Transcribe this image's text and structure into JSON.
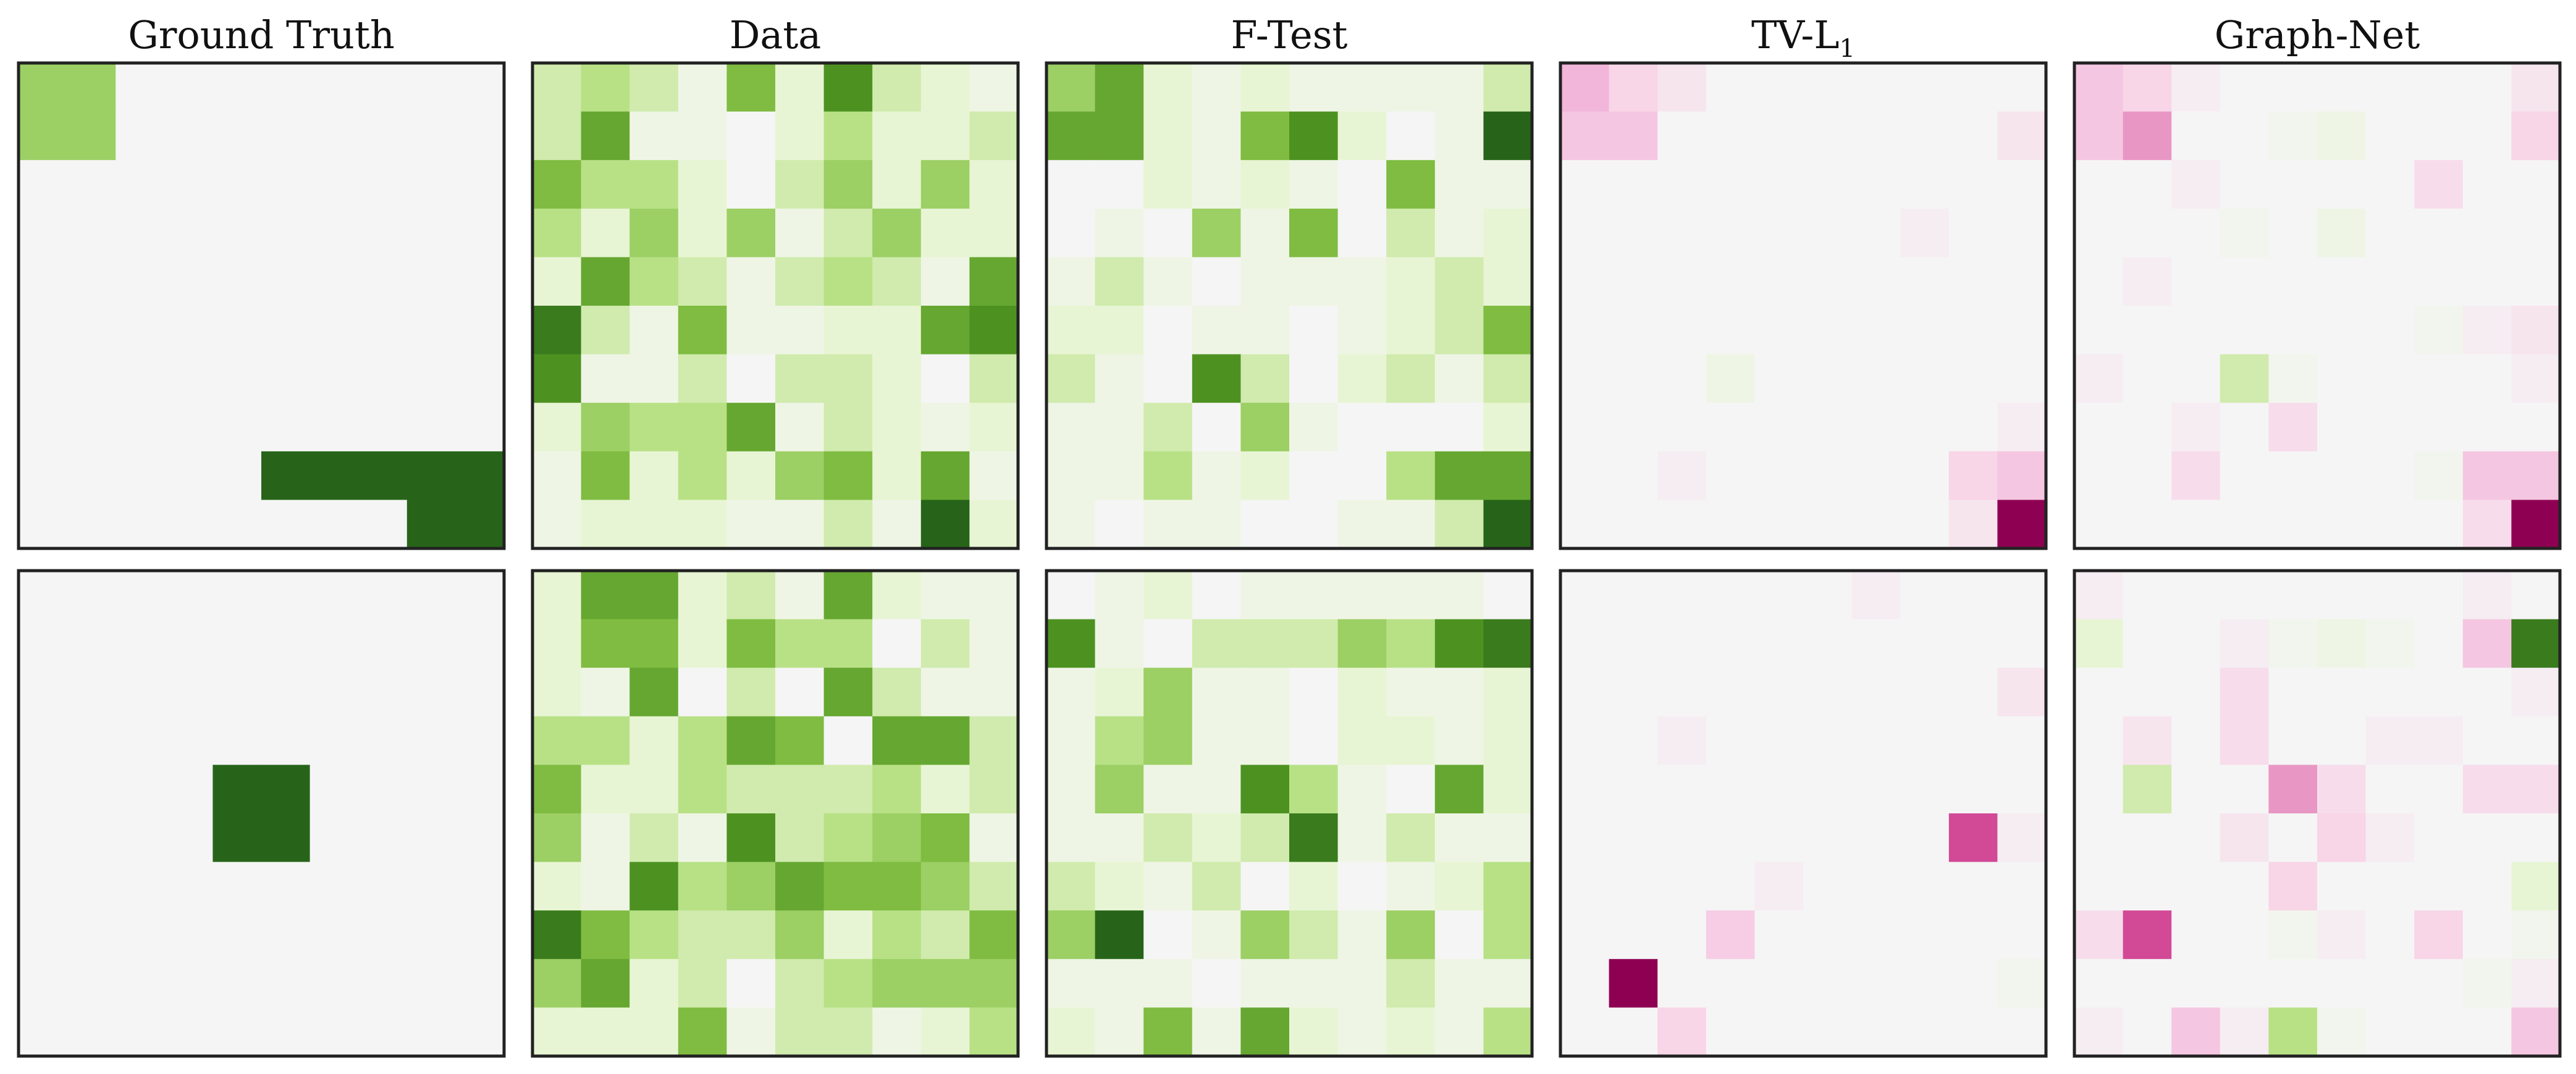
{
  "chart_data": {
    "type": "heatmap",
    "colormap": "PiYG",
    "grid": false,
    "panel_titles": [
      "Ground Truth",
      "Data",
      "F-Test",
      "TV-L",
      "Graph-Net"
    ],
    "title_subscripts": [
      "",
      "",
      "",
      "1",
      ""
    ],
    "rows": [
      [
        [
          [
            5,
            5,
            0,
            0,
            0,
            0,
            0,
            0,
            0,
            0
          ],
          [
            5,
            5,
            0,
            0,
            0,
            0,
            0,
            0,
            0,
            0
          ],
          [
            0,
            0,
            0,
            0,
            0,
            0,
            0,
            0,
            0,
            0
          ],
          [
            0,
            0,
            0,
            0,
            0,
            0,
            0,
            0,
            0,
            0
          ],
          [
            0,
            0,
            0,
            0,
            0,
            0,
            0,
            0,
            0,
            0
          ],
          [
            0,
            0,
            0,
            0,
            0,
            0,
            0,
            0,
            0,
            0
          ],
          [
            0,
            0,
            0,
            0,
            0,
            0,
            0,
            0,
            0,
            0
          ],
          [
            0,
            0,
            0,
            0,
            0,
            0,
            0,
            0,
            0,
            0
          ],
          [
            0,
            0,
            0,
            0,
            0,
            10,
            10,
            10,
            10,
            10
          ],
          [
            0,
            0,
            0,
            0,
            0,
            0,
            0,
            0,
            10,
            10
          ]
        ],
        [
          [
            3,
            4,
            3,
            1,
            6,
            2,
            8,
            3,
            2,
            1
          ],
          [
            3,
            7,
            1,
            1,
            0,
            2,
            4,
            2,
            2,
            3
          ],
          [
            6,
            4,
            4,
            2,
            0,
            3,
            5,
            2,
            5,
            2
          ],
          [
            4,
            2,
            5,
            2,
            5,
            1,
            3,
            5,
            2,
            2
          ],
          [
            2,
            7,
            4,
            3,
            1,
            3,
            4,
            3,
            1,
            7
          ],
          [
            9,
            3,
            1,
            6,
            1,
            1,
            2,
            2,
            7,
            8
          ],
          [
            8,
            1,
            1,
            3,
            0,
            3,
            3,
            2,
            0,
            3
          ],
          [
            2,
            5,
            4,
            4,
            7,
            1,
            3,
            2,
            1,
            2
          ],
          [
            1,
            6,
            2,
            4,
            2,
            5,
            6,
            2,
            7,
            1
          ],
          [
            1,
            2,
            2,
            2,
            1,
            1,
            3,
            1,
            10,
            2
          ]
        ],
        [
          [
            5,
            7,
            2,
            1,
            2,
            1,
            1,
            1,
            1,
            3
          ],
          [
            7,
            7,
            2,
            1,
            6,
            8,
            2,
            0,
            1,
            10
          ],
          [
            0,
            0,
            2,
            1,
            2,
            1,
            0,
            6,
            1,
            1
          ],
          [
            0,
            1,
            0,
            5,
            1,
            6,
            0,
            3,
            1,
            2
          ],
          [
            1,
            3,
            1,
            0,
            1,
            1,
            1,
            2,
            3,
            2
          ],
          [
            2,
            2,
            0,
            1,
            1,
            0,
            1,
            2,
            3,
            6
          ],
          [
            3,
            1,
            0,
            8,
            3,
            0,
            2,
            3,
            1,
            3
          ],
          [
            1,
            1,
            3,
            0,
            5,
            1,
            0,
            0,
            0,
            2
          ],
          [
            1,
            1,
            4,
            1,
            2,
            0,
            0,
            4,
            7,
            7
          ],
          [
            1,
            0,
            1,
            1,
            0,
            0,
            1,
            1,
            3,
            10
          ]
        ],
        [
          [
            -4,
            -2,
            -1,
            0,
            0,
            0,
            0,
            0,
            0,
            0
          ],
          [
            -3,
            -3,
            0,
            0,
            0,
            0,
            0,
            0,
            0,
            -1
          ],
          [
            0,
            0,
            0,
            0,
            0,
            0,
            0,
            0,
            0,
            0
          ],
          [
            0,
            0,
            0,
            0,
            0,
            0,
            0,
            -0.5,
            0,
            0
          ],
          [
            0,
            0,
            0,
            0,
            0,
            0,
            0,
            0,
            0,
            0
          ],
          [
            0,
            0,
            0,
            0,
            0,
            0,
            0,
            0,
            0,
            0
          ],
          [
            0,
            0,
            0,
            1,
            0,
            0,
            0,
            0,
            0,
            0
          ],
          [
            0,
            0,
            0,
            0,
            0,
            0,
            0,
            0,
            0,
            -0.5
          ],
          [
            0,
            0,
            -0.5,
            0,
            0,
            0,
            0,
            0,
            -2,
            -3
          ],
          [
            0,
            0,
            0,
            0,
            0,
            0,
            0,
            0,
            -1,
            -10
          ]
        ],
        [
          [
            -3,
            -2,
            -0.5,
            0,
            0,
            0,
            0,
            0,
            0,
            -1
          ],
          [
            -3,
            -5,
            0,
            0,
            0.5,
            1,
            0,
            0,
            0,
            -2
          ],
          [
            0,
            0,
            -0.5,
            0,
            0,
            0,
            0,
            -1.5,
            0,
            0
          ],
          [
            0,
            0,
            0,
            0.5,
            0,
            1,
            0,
            0,
            0,
            0
          ],
          [
            0,
            -0.5,
            0,
            0,
            0,
            0,
            0,
            0,
            0,
            0
          ],
          [
            0,
            0,
            0,
            0,
            0,
            0,
            0,
            0.5,
            -0.5,
            -1
          ],
          [
            -0.5,
            0,
            0,
            3,
            0.5,
            0,
            0,
            0,
            0,
            -0.5
          ],
          [
            0,
            0,
            -0.5,
            0,
            -1.5,
            0,
            0,
            0,
            0,
            0
          ],
          [
            0,
            0,
            -1.5,
            0,
            0,
            0,
            0,
            0.5,
            -3,
            -3
          ],
          [
            0,
            0,
            0,
            0,
            0,
            0,
            0,
            0,
            -1.5,
            -10
          ]
        ]
      ],
      [
        [
          [
            0,
            0,
            0,
            0,
            0,
            0,
            0,
            0,
            0,
            0
          ],
          [
            0,
            0,
            0,
            0,
            0,
            0,
            0,
            0,
            0,
            0
          ],
          [
            0,
            0,
            0,
            0,
            0,
            0,
            0,
            0,
            0,
            0
          ],
          [
            0,
            0,
            0,
            0,
            0,
            0,
            0,
            0,
            0,
            0
          ],
          [
            0,
            0,
            0,
            0,
            10,
            10,
            0,
            0,
            0,
            0
          ],
          [
            0,
            0,
            0,
            0,
            10,
            10,
            0,
            0,
            0,
            0
          ],
          [
            0,
            0,
            0,
            0,
            0,
            0,
            0,
            0,
            0,
            0
          ],
          [
            0,
            0,
            0,
            0,
            0,
            0,
            0,
            0,
            0,
            0
          ],
          [
            0,
            0,
            0,
            0,
            0,
            0,
            0,
            0,
            0,
            0
          ],
          [
            0,
            0,
            0,
            0,
            0,
            0,
            0,
            0,
            0,
            0
          ]
        ],
        [
          [
            2,
            7,
            7,
            2,
            3,
            1,
            7,
            2,
            1,
            1
          ],
          [
            2,
            6,
            6,
            2,
            6,
            4,
            4,
            0,
            3,
            1
          ],
          [
            2,
            1,
            7,
            0,
            3,
            0,
            7,
            3,
            1,
            1
          ],
          [
            4,
            4,
            2,
            4,
            7,
            6,
            0,
            7,
            7,
            3
          ],
          [
            6,
            2,
            2,
            4,
            3,
            3,
            3,
            4,
            2,
            3
          ],
          [
            5,
            1,
            3,
            1,
            8,
            3,
            4,
            5,
            6,
            1
          ],
          [
            2,
            1,
            8,
            4,
            5,
            7,
            6,
            6,
            5,
            3
          ],
          [
            9,
            6,
            4,
            3,
            3,
            5,
            2,
            4,
            3,
            6
          ],
          [
            5,
            7,
            2,
            3,
            0,
            3,
            4,
            5,
            5,
            5
          ],
          [
            2,
            2,
            2,
            6,
            1,
            3,
            3,
            1,
            2,
            4
          ]
        ],
        [
          [
            0,
            1,
            2,
            0,
            1,
            1,
            1,
            1,
            1,
            0
          ],
          [
            8,
            1,
            0,
            3,
            3,
            3,
            5,
            4,
            8,
            9
          ],
          [
            1,
            2,
            5,
            1,
            1,
            0,
            2,
            1,
            1,
            2
          ],
          [
            1,
            4,
            5,
            1,
            1,
            0,
            2,
            2,
            1,
            2
          ],
          [
            1,
            5,
            1,
            1,
            8,
            4,
            1,
            0,
            7,
            2
          ],
          [
            1,
            1,
            3,
            2,
            3,
            9,
            1,
            3,
            1,
            1
          ],
          [
            3,
            2,
            1,
            3,
            0,
            2,
            0,
            1,
            2,
            4
          ],
          [
            5,
            10,
            0,
            1,
            5,
            3,
            1,
            5,
            0,
            4
          ],
          [
            1,
            1,
            1,
            0,
            1,
            1,
            1,
            3,
            1,
            1
          ],
          [
            2,
            1,
            6,
            1,
            7,
            2,
            1,
            2,
            1,
            4
          ]
        ],
        [
          [
            0,
            0,
            0,
            0,
            0,
            0,
            -0.5,
            0,
            0,
            0
          ],
          [
            0,
            0,
            0,
            0,
            0,
            0,
            0,
            0,
            0,
            0
          ],
          [
            0,
            0,
            0,
            0,
            0,
            0,
            0,
            0,
            0,
            -1
          ],
          [
            0,
            0,
            -0.5,
            0,
            0,
            0,
            0,
            0,
            0,
            0
          ],
          [
            0,
            0,
            0,
            0,
            0,
            0,
            0,
            0,
            0,
            0
          ],
          [
            0,
            0,
            0,
            0,
            0,
            0,
            0,
            0,
            -7,
            -0.5
          ],
          [
            0,
            0,
            0,
            0,
            -0.5,
            0,
            0,
            0,
            0,
            0
          ],
          [
            0,
            0,
            0,
            -2.5,
            0,
            0,
            0,
            0,
            0,
            0
          ],
          [
            0,
            -10,
            0,
            0,
            0,
            0,
            0,
            0,
            0,
            0.5
          ],
          [
            0,
            0,
            -2,
            0,
            0,
            0,
            0,
            0,
            0,
            0
          ]
        ],
        [
          [
            -0.5,
            0,
            0,
            0,
            0,
            0,
            0,
            0,
            -0.5,
            0
          ],
          [
            2,
            0,
            0,
            -0.5,
            0.5,
            1,
            0.5,
            0,
            -3,
            9
          ],
          [
            0,
            0,
            0,
            -1.5,
            0,
            0,
            0,
            0,
            0,
            -0.5
          ],
          [
            0,
            -1,
            0,
            -1.5,
            0,
            0,
            -0.5,
            -0.5,
            0,
            0
          ],
          [
            0,
            3,
            0,
            0,
            -5,
            -1.5,
            0,
            0,
            -1.5,
            -1.5
          ],
          [
            0,
            0,
            0,
            -1,
            0,
            -2,
            -0.5,
            0,
            0,
            0
          ],
          [
            0,
            0,
            0,
            0,
            -2,
            0,
            0,
            0,
            0,
            2
          ],
          [
            -1.5,
            -7,
            0,
            0,
            0.5,
            -0.5,
            0,
            -2,
            0,
            0.5
          ],
          [
            0,
            0,
            0,
            0,
            0,
            0,
            0,
            0,
            0.5,
            -0.5
          ],
          [
            -0.5,
            0,
            -3,
            -0.5,
            4,
            0.5,
            0,
            0,
            0,
            -3
          ]
        ]
      ]
    ]
  }
}
